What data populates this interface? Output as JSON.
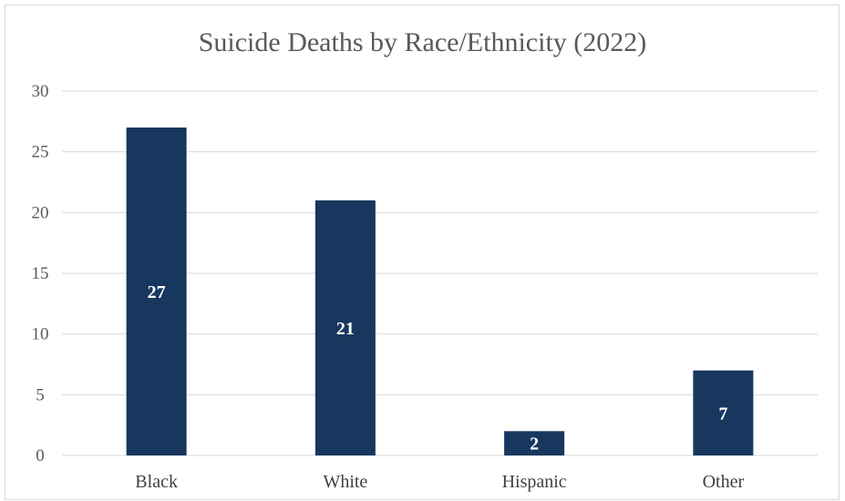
{
  "chart_data": {
    "type": "bar",
    "title": "Suicide Deaths by Race/Ethnicity (2022)",
    "categories": [
      "Black",
      "White",
      "Hispanic",
      "Other"
    ],
    "values": [
      27,
      21,
      2,
      7
    ],
    "data_labels": [
      "27",
      "21",
      "2",
      "7"
    ],
    "xlabel": "",
    "ylabel": "",
    "ylim": [
      0,
      30
    ],
    "yticks": [
      "0",
      "5",
      "10",
      "15",
      "20",
      "25",
      "30"
    ],
    "grid": true,
    "legend": "none",
    "colors": {
      "bar": "#17375e",
      "grid": "#d9d9d9",
      "label": "#ffffff"
    }
  }
}
